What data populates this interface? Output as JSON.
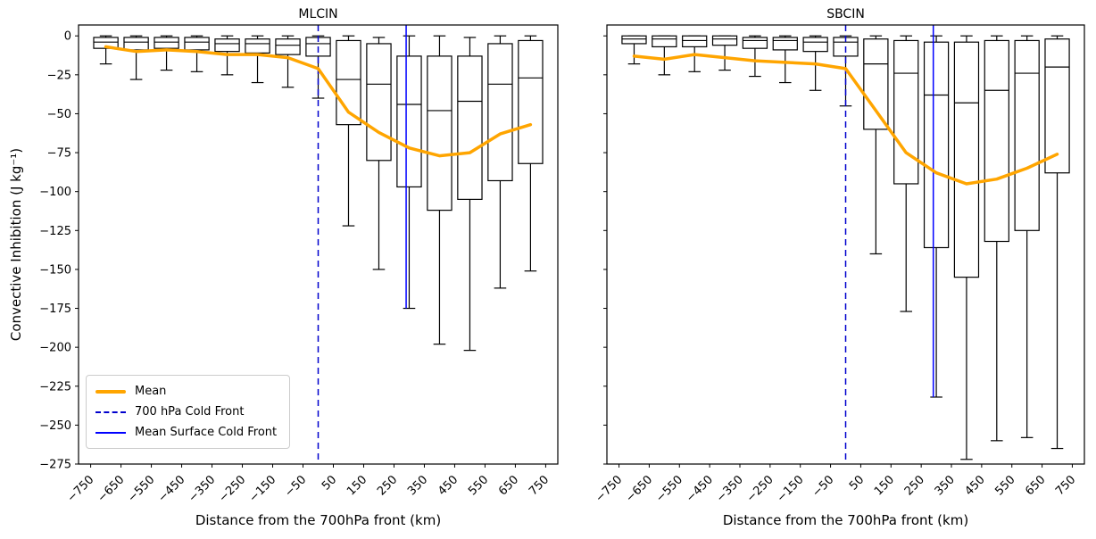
{
  "figure": {
    "background": "#ffffff"
  },
  "colors": {
    "mean_line": "#FFA500",
    "front_dashed": "#0000CD",
    "front_solid": "#0000FF",
    "box_stroke": "#000000"
  },
  "legend": {
    "items": [
      {
        "label": "Mean",
        "style": "mean"
      },
      {
        "label": "700 hPa Cold Front",
        "style": "dashed"
      },
      {
        "label": "Mean Surface Cold Front",
        "style": "solid"
      }
    ]
  },
  "chart_data": [
    {
      "type": "box",
      "title": "MLCIN",
      "xlabel": "Distance from the 700hPa front (km)",
      "ylabel": "Convective Inhibition (J kg⁻¹)",
      "xlim": [
        -790,
        790
      ],
      "ylim": [
        -275,
        7
      ],
      "xticks": [
        -750,
        -650,
        -550,
        -450,
        -350,
        -250,
        -150,
        -50,
        50,
        150,
        250,
        350,
        450,
        550,
        650,
        750
      ],
      "yticks": [
        0,
        -25,
        -50,
        -75,
        -100,
        -125,
        -150,
        -175,
        -200,
        -225,
        -250,
        -275
      ],
      "show_ytick_labels": true,
      "box_width_km": 80,
      "boxes": [
        {
          "x": -700,
          "whislo": -18,
          "q1": -8,
          "med": -4,
          "q3": -1,
          "whishi": 0
        },
        {
          "x": -600,
          "whislo": -28,
          "q1": -9,
          "med": -4,
          "q3": -1,
          "whishi": 0
        },
        {
          "x": -500,
          "whislo": -22,
          "q1": -8,
          "med": -4,
          "q3": -1,
          "whishi": 0
        },
        {
          "x": -400,
          "whislo": -23,
          "q1": -9,
          "med": -4,
          "q3": -1,
          "whishi": 0
        },
        {
          "x": -300,
          "whislo": -25,
          "q1": -10,
          "med": -5,
          "q3": -2,
          "whishi": 0
        },
        {
          "x": -200,
          "whislo": -30,
          "q1": -11,
          "med": -5,
          "q3": -2,
          "whishi": 0
        },
        {
          "x": -100,
          "whislo": -33,
          "q1": -12,
          "med": -6,
          "q3": -2,
          "whishi": 0
        },
        {
          "x": 0,
          "whislo": -40,
          "q1": -13,
          "med": -5,
          "q3": -1,
          "whishi": 0
        },
        {
          "x": 100,
          "whislo": -122,
          "q1": -57,
          "med": -28,
          "q3": -3,
          "whishi": 0
        },
        {
          "x": 200,
          "whislo": -150,
          "q1": -80,
          "med": -31,
          "q3": -5,
          "whishi": -1
        },
        {
          "x": 300,
          "whislo": -175,
          "q1": -97,
          "med": -44,
          "q3": -13,
          "whishi": 0
        },
        {
          "x": 400,
          "whislo": -198,
          "q1": -112,
          "med": -48,
          "q3": -13,
          "whishi": 0
        },
        {
          "x": 500,
          "whislo": -202,
          "q1": -105,
          "med": -42,
          "q3": -13,
          "whishi": -1
        },
        {
          "x": 600,
          "whislo": -162,
          "q1": -93,
          "med": -31,
          "q3": -5,
          "whishi": 0
        },
        {
          "x": 700,
          "whislo": -151,
          "q1": -82,
          "med": -27,
          "q3": -3,
          "whishi": 0
        }
      ],
      "mean": {
        "x": [
          -700,
          -600,
          -500,
          -400,
          -300,
          -200,
          -100,
          0,
          100,
          200,
          300,
          400,
          500,
          600,
          700
        ],
        "y": [
          -7,
          -10,
          -9,
          -10,
          -12,
          -12,
          -14,
          -21,
          -49,
          -62,
          -72,
          -77,
          -75,
          -63,
          -57
        ]
      },
      "front_dashed_x": 0,
      "front_solid": {
        "x": 290,
        "y_bottom": -175
      }
    },
    {
      "type": "box",
      "title": "SBCIN",
      "xlabel": "Distance from the 700hPa front (km)",
      "ylabel": "Convective Inhibition (J kg⁻¹)",
      "xlim": [
        -790,
        790
      ],
      "ylim": [
        -275,
        7
      ],
      "xticks": [
        -750,
        -650,
        -550,
        -450,
        -350,
        -250,
        -150,
        -50,
        50,
        150,
        250,
        350,
        450,
        550,
        650,
        750
      ],
      "yticks": [
        0,
        -25,
        -50,
        -75,
        -100,
        -125,
        -150,
        -175,
        -200,
        -225,
        -250,
        -275
      ],
      "show_ytick_labels": false,
      "box_width_km": 80,
      "boxes": [
        {
          "x": -700,
          "whislo": -18,
          "q1": -5,
          "med": -2,
          "q3": 0,
          "whishi": 0
        },
        {
          "x": -600,
          "whislo": -25,
          "q1": -7,
          "med": -2,
          "q3": 0,
          "whishi": 0
        },
        {
          "x": -500,
          "whislo": -23,
          "q1": -7,
          "med": -3,
          "q3": 0,
          "whishi": 0
        },
        {
          "x": -400,
          "whislo": -22,
          "q1": -6,
          "med": -2,
          "q3": 0,
          "whishi": 0
        },
        {
          "x": -300,
          "whislo": -26,
          "q1": -8,
          "med": -3,
          "q3": -1,
          "whishi": 0
        },
        {
          "x": -200,
          "whislo": -30,
          "q1": -9,
          "med": -3,
          "q3": -1,
          "whishi": 0
        },
        {
          "x": -100,
          "whislo": -35,
          "q1": -10,
          "med": -4,
          "q3": -1,
          "whishi": 0
        },
        {
          "x": 0,
          "whislo": -45,
          "q1": -13,
          "med": -4,
          "q3": -1,
          "whishi": 0
        },
        {
          "x": 100,
          "whislo": -140,
          "q1": -60,
          "med": -18,
          "q3": -2,
          "whishi": 0
        },
        {
          "x": 200,
          "whislo": -177,
          "q1": -95,
          "med": -24,
          "q3": -3,
          "whishi": 0
        },
        {
          "x": 300,
          "whislo": -232,
          "q1": -136,
          "med": -38,
          "q3": -4,
          "whishi": 0
        },
        {
          "x": 400,
          "whislo": -272,
          "q1": -155,
          "med": -43,
          "q3": -4,
          "whishi": 0
        },
        {
          "x": 500,
          "whislo": -260,
          "q1": -132,
          "med": -35,
          "q3": -3,
          "whishi": 0
        },
        {
          "x": 600,
          "whislo": -258,
          "q1": -125,
          "med": -24,
          "q3": -3,
          "whishi": 0
        },
        {
          "x": 700,
          "whislo": -265,
          "q1": -88,
          "med": -20,
          "q3": -2,
          "whishi": 0
        }
      ],
      "mean": {
        "x": [
          -700,
          -600,
          -500,
          -400,
          -300,
          -200,
          -100,
          0,
          100,
          200,
          300,
          400,
          500,
          600,
          700
        ],
        "y": [
          -13,
          -15,
          -12,
          -14,
          -16,
          -17,
          -18,
          -21,
          -48,
          -75,
          -88,
          -95,
          -92,
          -85,
          -76
        ]
      },
      "front_dashed_x": 0,
      "front_solid": {
        "x": 290,
        "y_bottom": -232
      }
    }
  ]
}
